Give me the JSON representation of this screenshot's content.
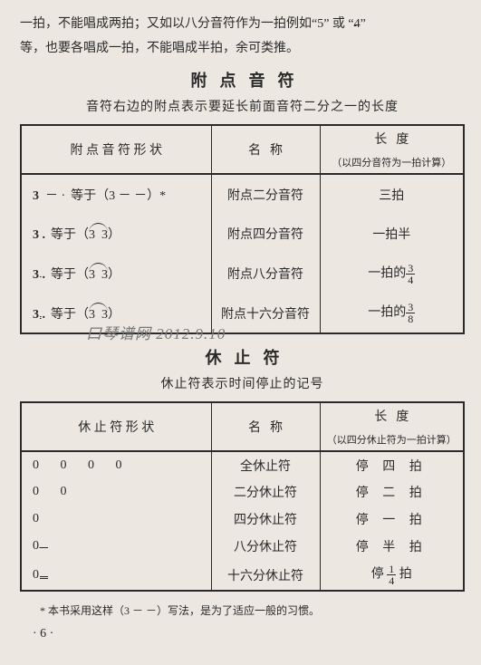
{
  "intro": {
    "line1": "一拍，不能唱成两拍；又如以八分音符作为一拍例如“",
    "ex1": "5",
    "mid1": "” 或 “",
    "ex2": "4",
    "end1": "”",
    "line2": "等，也要各唱成一拍，不能唱成半拍，余可类推。"
  },
  "section1": {
    "title": "附点音符",
    "subtitle": "音符右边的附点表示要延长前面音符二分之一的长度",
    "headers": {
      "c1": "附 点 音 符 形 状",
      "c2": "名",
      "c2b": "称",
      "c3": "长",
      "c3b": "度",
      "c3sub": "（以四分音符为一拍计算）"
    },
    "rows": [
      {
        "lead": "3",
        "dots": "－ ·",
        "eq": "等于（3  －  －）*",
        "name": "附点二分音符",
        "len": "三拍"
      },
      {
        "lead": "3 .",
        "dots": "",
        "eq": "等于（",
        "eqmid": "3   3",
        "eqend": "）",
        "name": "附点四分音符",
        "len": "一拍半"
      },
      {
        "lead": "3 .",
        "dots": "",
        "eq": "等于（",
        "eqmid": "3   3",
        "eqend": "）",
        "name": "附点八分音符",
        "len_pre": "一拍的",
        "frac_n": "3",
        "frac_d": "4"
      },
      {
        "lead": "3 .",
        "dots": "",
        "eq": "等于（",
        "eqmid": "3   3",
        "eqend": "）",
        "name": "附点十六分音符",
        "len_pre": "一拍的",
        "frac_n": "3",
        "frac_d": "8"
      }
    ]
  },
  "section2": {
    "title": "休止符",
    "subtitle": "休止符表示时间停止的记号",
    "headers": {
      "c1": "休 止 符 形 状",
      "c2": "名",
      "c2b": "称",
      "c3": "长",
      "c3b": "度",
      "c3sub": "（以四分休止符为一拍计算）"
    },
    "rows": [
      {
        "shape": "0        0        0        0",
        "name": "全休止符",
        "len": "停   四   拍"
      },
      {
        "shape": "0        0",
        "name": "二分休止符",
        "len": "停   二   拍"
      },
      {
        "shape": "0",
        "name": "四分休止符",
        "len": "停   一   拍"
      },
      {
        "shape": "0",
        "u": 1,
        "name": "八分休止符",
        "len": "停   半   拍"
      },
      {
        "shape": "0",
        "u": 2,
        "name": "十六分休止符",
        "len_pre": "停  ",
        "frac_n": "1",
        "frac_d": "4",
        "len_post": "  拍"
      }
    ]
  },
  "footnote": "*   本书采用这样（3 － －）写法，是为了适应一般的习惯。",
  "pagenum": "·  6  ·"
}
